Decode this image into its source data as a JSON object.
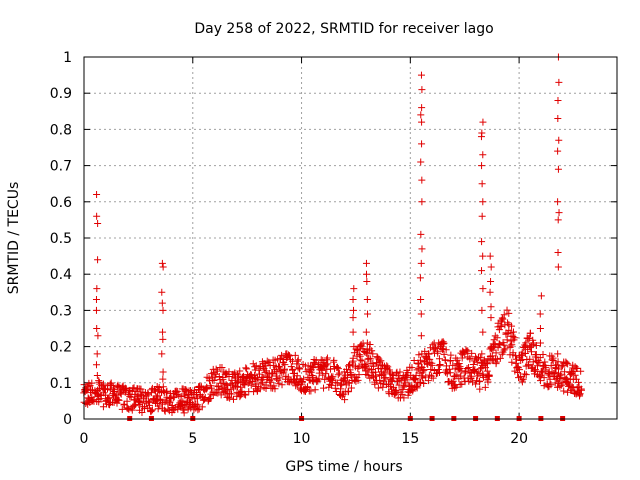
{
  "chart_data": {
    "type": "scatter",
    "title": "Day 258 of 2022, SRMTID for receiver lago",
    "xlabel": "GPS time / hours",
    "ylabel": "SRMTID / TECUs",
    "xlim": [
      0,
      24.5
    ],
    "ylim": [
      0,
      1
    ],
    "xticks": [
      0,
      5,
      10,
      15,
      20
    ],
    "yticks": [
      0,
      0.1,
      0.2,
      0.3,
      0.4,
      0.5,
      0.6,
      0.7,
      0.8,
      0.9,
      1
    ],
    "grid": true,
    "marker": "plus",
    "color": "#e00000",
    "baseline_profile": [
      [
        0.0,
        0.06
      ],
      [
        0.5,
        0.07
      ],
      [
        1.0,
        0.07
      ],
      [
        1.5,
        0.06
      ],
      [
        2.0,
        0.06
      ],
      [
        2.5,
        0.05
      ],
      [
        3.0,
        0.05
      ],
      [
        3.5,
        0.06
      ],
      [
        4.0,
        0.05
      ],
      [
        4.5,
        0.05
      ],
      [
        5.0,
        0.05
      ],
      [
        5.5,
        0.07
      ],
      [
        6.0,
        0.11
      ],
      [
        6.5,
        0.1
      ],
      [
        7.0,
        0.09
      ],
      [
        7.5,
        0.11
      ],
      [
        8.0,
        0.12
      ],
      [
        8.5,
        0.12
      ],
      [
        9.0,
        0.13
      ],
      [
        9.5,
        0.15
      ],
      [
        10.0,
        0.11
      ],
      [
        10.5,
        0.12
      ],
      [
        11.0,
        0.13
      ],
      [
        11.5,
        0.12
      ],
      [
        12.0,
        0.09
      ],
      [
        12.5,
        0.15
      ],
      [
        13.0,
        0.17
      ],
      [
        13.5,
        0.13
      ],
      [
        14.0,
        0.11
      ],
      [
        14.5,
        0.09
      ],
      [
        15.0,
        0.11
      ],
      [
        15.5,
        0.14
      ],
      [
        16.0,
        0.16
      ],
      [
        16.5,
        0.17
      ],
      [
        17.0,
        0.12
      ],
      [
        17.5,
        0.15
      ],
      [
        18.0,
        0.13
      ],
      [
        18.5,
        0.12
      ],
      [
        19.0,
        0.21
      ],
      [
        19.5,
        0.25
      ],
      [
        20.0,
        0.13
      ],
      [
        20.5,
        0.19
      ],
      [
        21.0,
        0.14
      ],
      [
        21.5,
        0.13
      ],
      [
        22.0,
        0.12
      ],
      [
        22.5,
        0.11
      ],
      [
        22.9,
        0.1
      ]
    ],
    "spikes": [
      {
        "x": 0.6,
        "values": [
          0.62,
          0.56,
          0.54,
          0.44,
          0.36,
          0.33,
          0.3,
          0.25,
          0.23,
          0.18,
          0.15,
          0.12
        ]
      },
      {
        "x": 3.6,
        "values": [
          0.43,
          0.42,
          0.35,
          0.32,
          0.3,
          0.24,
          0.22,
          0.18,
          0.13,
          0.11
        ]
      },
      {
        "x": 12.4,
        "values": [
          0.36,
          0.33,
          0.3,
          0.28,
          0.24,
          0.2,
          0.16
        ]
      },
      {
        "x": 13.0,
        "values": [
          0.43,
          0.4,
          0.38,
          0.33,
          0.29,
          0.24,
          0.21
        ]
      },
      {
        "x": 15.5,
        "values": [
          0.95,
          0.91,
          0.86,
          0.84,
          0.82,
          0.76,
          0.71,
          0.66,
          0.6,
          0.51,
          0.47,
          0.43,
          0.39,
          0.33,
          0.29,
          0.23,
          0.18
        ]
      },
      {
        "x": 18.3,
        "values": [
          0.82,
          0.79,
          0.78,
          0.73,
          0.7,
          0.65,
          0.6,
          0.56,
          0.49,
          0.45,
          0.41,
          0.36,
          0.3,
          0.24,
          0.18
        ]
      },
      {
        "x": 18.7,
        "values": [
          0.45,
          0.42,
          0.38,
          0.35,
          0.31,
          0.28
        ]
      },
      {
        "x": 21.0,
        "values": [
          0.34,
          0.29,
          0.25,
          0.21
        ]
      },
      {
        "x": 21.8,
        "values": [
          1.0,
          0.93,
          0.88,
          0.83,
          0.77,
          0.74,
          0.69,
          0.6,
          0.57,
          0.55,
          0.46,
          0.42,
          0.18
        ]
      }
    ],
    "zero_markers_x": [
      2.1,
      3.1,
      5.0,
      10.0,
      15.0,
      16.0,
      17.0,
      18.0,
      19.0,
      20.0,
      21.0,
      22.0
    ]
  }
}
